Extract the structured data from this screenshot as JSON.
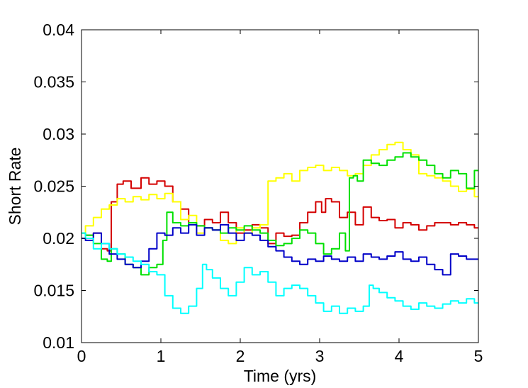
{
  "chart_data": {
    "type": "line",
    "title": "",
    "xlabel": "Time (yrs)",
    "ylabel": "Short Rate",
    "xlim": [
      0,
      5
    ],
    "ylim": [
      0.01,
      0.04
    ],
    "xticks": [
      "0",
      "1",
      "2",
      "3",
      "4",
      "5"
    ],
    "yticks": [
      "0.01",
      "0.015",
      "0.02",
      "0.025",
      "0.03",
      "0.035",
      "0.04"
    ],
    "grid": false,
    "legend": "none",
    "series": [
      {
        "color": "#d40000",
        "x": [
          0,
          0.1,
          0.2,
          0.3,
          0.35,
          0.4,
          0.5,
          0.55,
          0.7,
          0.8,
          0.9,
          1.0,
          1.1,
          1.2,
          1.3,
          1.4,
          1.5,
          1.6,
          1.7,
          1.8,
          1.9,
          2.0,
          2.1,
          2.2,
          2.3,
          2.4,
          2.5,
          2.6,
          2.7,
          2.8,
          2.9,
          3.0,
          3.05,
          3.1,
          3.2,
          3.3,
          3.4,
          3.5,
          3.6,
          3.7,
          3.8,
          3.9,
          4.0,
          4.1,
          4.2,
          4.3,
          4.4,
          4.5,
          4.6,
          4.7,
          4.8,
          4.9,
          5.0
        ],
        "y": [
          0.0205,
          0.0203,
          0.0205,
          0.019,
          0.0188,
          0.0235,
          0.0252,
          0.0255,
          0.0248,
          0.0258,
          0.0252,
          0.0255,
          0.025,
          0.0235,
          0.0228,
          0.0215,
          0.0212,
          0.0218,
          0.0215,
          0.0225,
          0.0215,
          0.0205,
          0.0208,
          0.0213,
          0.021,
          0.0195,
          0.0205,
          0.0202,
          0.0203,
          0.0215,
          0.0225,
          0.0235,
          0.0225,
          0.0238,
          0.0235,
          0.022,
          0.0225,
          0.0213,
          0.023,
          0.022,
          0.0217,
          0.0218,
          0.021,
          0.0215,
          0.0213,
          0.0208,
          0.0212,
          0.0215,
          0.0215,
          0.0213,
          0.0215,
          0.0213,
          0.021
        ]
      },
      {
        "color": "#ffff00",
        "x": [
          0,
          0.1,
          0.2,
          0.3,
          0.4,
          0.5,
          0.6,
          0.7,
          0.8,
          0.9,
          1.0,
          1.1,
          1.2,
          1.3,
          1.4,
          1.5,
          1.6,
          1.7,
          1.8,
          1.9,
          2.0,
          2.1,
          2.2,
          2.3,
          2.4,
          2.5,
          2.6,
          2.7,
          2.8,
          2.9,
          3.0,
          3.1,
          3.2,
          3.3,
          3.4,
          3.5,
          3.6,
          3.7,
          3.8,
          3.9,
          4.0,
          4.1,
          4.2,
          4.3,
          4.4,
          4.5,
          4.6,
          4.7,
          4.8,
          4.9,
          5.0
        ],
        "y": [
          0.0205,
          0.0212,
          0.022,
          0.0228,
          0.0232,
          0.0238,
          0.0235,
          0.024,
          0.0237,
          0.0242,
          0.0238,
          0.0243,
          0.0235,
          0.0218,
          0.0222,
          0.0205,
          0.021,
          0.0208,
          0.0198,
          0.0195,
          0.021,
          0.0205,
          0.021,
          0.0213,
          0.0255,
          0.0258,
          0.0262,
          0.0255,
          0.0265,
          0.0268,
          0.027,
          0.0265,
          0.0268,
          0.0265,
          0.026,
          0.0262,
          0.027,
          0.028,
          0.0285,
          0.029,
          0.0292,
          0.0285,
          0.028,
          0.0262,
          0.026,
          0.0258,
          0.0255,
          0.025,
          0.0245,
          0.0247,
          0.024
        ]
      },
      {
        "color": "#00e000",
        "x": [
          0,
          0.1,
          0.2,
          0.3,
          0.35,
          0.4,
          0.5,
          0.6,
          0.7,
          0.8,
          0.9,
          1.0,
          1.05,
          1.1,
          1.2,
          1.3,
          1.4,
          1.5,
          1.6,
          1.7,
          1.8,
          1.9,
          2.0,
          2.1,
          2.2,
          2.3,
          2.4,
          2.5,
          2.6,
          2.7,
          2.8,
          2.9,
          3.0,
          3.1,
          3.2,
          3.3,
          3.35,
          3.4,
          3.45,
          3.5,
          3.6,
          3.7,
          3.8,
          3.9,
          4.0,
          4.1,
          4.2,
          4.3,
          4.4,
          4.5,
          4.6,
          4.7,
          4.8,
          4.9,
          5.0
        ],
        "y": [
          0.0205,
          0.0203,
          0.0195,
          0.018,
          0.0178,
          0.019,
          0.0185,
          0.0175,
          0.0172,
          0.0165,
          0.0172,
          0.0175,
          0.0198,
          0.0225,
          0.0215,
          0.0212,
          0.0215,
          0.0212,
          0.021,
          0.0208,
          0.0205,
          0.021,
          0.0208,
          0.0212,
          0.0208,
          0.0205,
          0.0198,
          0.0193,
          0.0195,
          0.02,
          0.0208,
          0.0205,
          0.0195,
          0.0185,
          0.019,
          0.0205,
          0.0188,
          0.0258,
          0.026,
          0.0255,
          0.0275,
          0.0272,
          0.027,
          0.0275,
          0.0278,
          0.0282,
          0.0278,
          0.0275,
          0.027,
          0.0262,
          0.0258,
          0.0265,
          0.0262,
          0.0248,
          0.0265
        ]
      },
      {
        "color": "#0000c8",
        "x": [
          0,
          0.1,
          0.2,
          0.3,
          0.4,
          0.5,
          0.6,
          0.7,
          0.8,
          0.9,
          1.0,
          1.1,
          1.2,
          1.3,
          1.4,
          1.5,
          1.6,
          1.7,
          1.8,
          1.9,
          2.0,
          2.1,
          2.2,
          2.3,
          2.4,
          2.5,
          2.6,
          2.7,
          2.8,
          2.9,
          3.0,
          3.1,
          3.2,
          3.3,
          3.4,
          3.5,
          3.6,
          3.7,
          3.8,
          3.9,
          4.0,
          4.1,
          4.2,
          4.3,
          4.4,
          4.5,
          4.6,
          4.7,
          4.8,
          4.9,
          5.0
        ],
        "y": [
          0.02,
          0.0198,
          0.0205,
          0.0195,
          0.0185,
          0.018,
          0.0175,
          0.0172,
          0.0178,
          0.019,
          0.0205,
          0.0203,
          0.021,
          0.0205,
          0.0213,
          0.0203,
          0.021,
          0.0208,
          0.0213,
          0.0205,
          0.0198,
          0.0205,
          0.0203,
          0.0198,
          0.0192,
          0.0188,
          0.0182,
          0.0178,
          0.0175,
          0.018,
          0.0178,
          0.0183,
          0.018,
          0.0178,
          0.0182,
          0.0178,
          0.0185,
          0.0182,
          0.018,
          0.0183,
          0.0187,
          0.018,
          0.0178,
          0.0182,
          0.0175,
          0.017,
          0.0165,
          0.0185,
          0.0183,
          0.018,
          0.018
        ]
      },
      {
        "color": "#00ffff",
        "x": [
          0,
          0.1,
          0.2,
          0.3,
          0.4,
          0.5,
          0.6,
          0.7,
          0.8,
          0.9,
          1.0,
          1.1,
          1.2,
          1.3,
          1.4,
          1.5,
          1.55,
          1.6,
          1.7,
          1.8,
          1.9,
          2.0,
          2.1,
          2.2,
          2.3,
          2.4,
          2.5,
          2.6,
          2.7,
          2.8,
          2.9,
          3.0,
          3.1,
          3.2,
          3.3,
          3.4,
          3.5,
          3.6,
          3.65,
          3.7,
          3.8,
          3.9,
          4.0,
          4.1,
          4.2,
          4.3,
          4.4,
          4.5,
          4.6,
          4.7,
          4.8,
          4.9,
          5.0
        ],
        "y": [
          0.0205,
          0.02,
          0.019,
          0.0195,
          0.019,
          0.0185,
          0.0182,
          0.0178,
          0.0175,
          0.0168,
          0.0165,
          0.0145,
          0.0133,
          0.0128,
          0.0135,
          0.0152,
          0.0175,
          0.017,
          0.0162,
          0.0152,
          0.0145,
          0.0158,
          0.0172,
          0.0165,
          0.0168,
          0.0158,
          0.0145,
          0.0152,
          0.0155,
          0.0152,
          0.0145,
          0.0138,
          0.013,
          0.0135,
          0.0128,
          0.0133,
          0.013,
          0.0135,
          0.0155,
          0.0152,
          0.0148,
          0.0143,
          0.014,
          0.0135,
          0.0132,
          0.0138,
          0.0135,
          0.0133,
          0.0137,
          0.014,
          0.0138,
          0.0142,
          0.0138
        ]
      }
    ]
  }
}
